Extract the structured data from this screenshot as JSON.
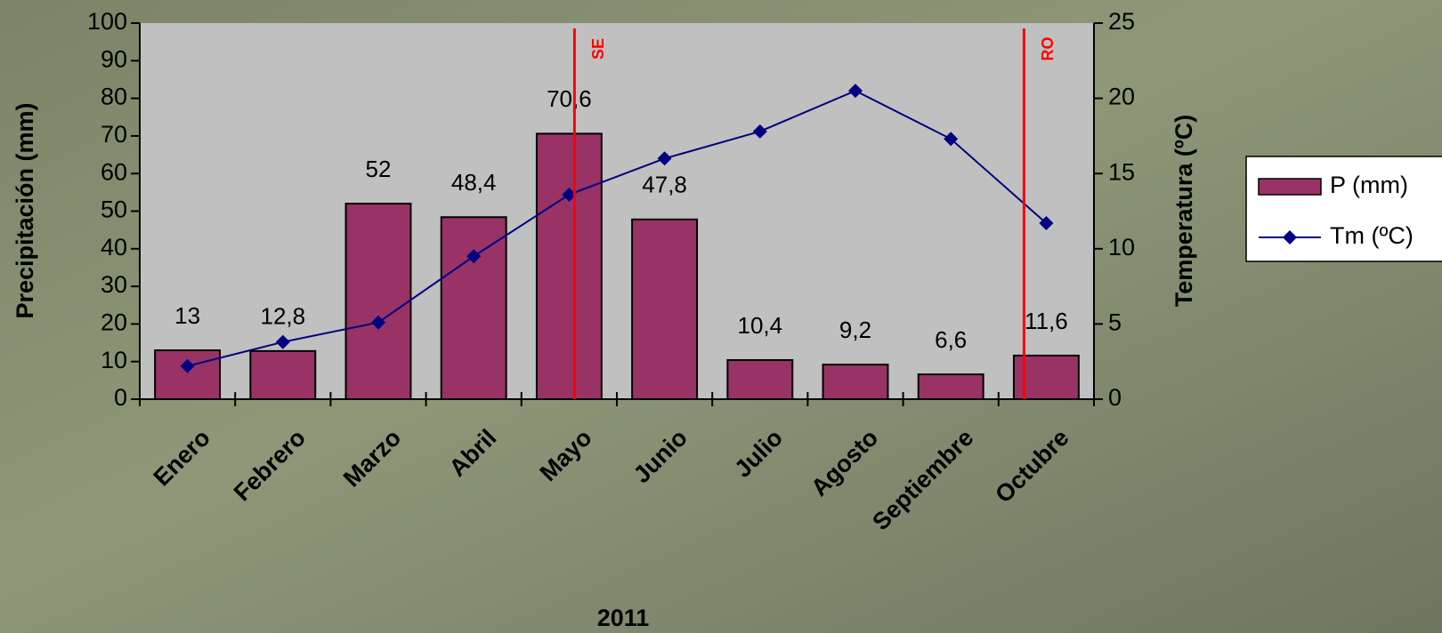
{
  "chart_data": {
    "type": "bar",
    "y_label": "Precipitación (mm)",
    "y2_label": "Temperatura (ºC)",
    "x_label": "2011",
    "categories": [
      "Enero",
      "Febrero",
      "Marzo",
      "Abril",
      "Mayo",
      "Junio",
      "Julio",
      "Agosto",
      "Septiembre",
      "Octubre"
    ],
    "series": [
      {
        "name": "P (mm)",
        "type": "bar",
        "color": "#993366",
        "values": [
          13,
          12.8,
          52,
          48.4,
          70.6,
          47.8,
          10.4,
          9.2,
          6.6,
          11.6
        ],
        "value_labels": [
          "13",
          "12,8",
          "52",
          "48,4",
          "70,6",
          "47,8",
          "10,4",
          "9,2",
          "6,6",
          "11,6"
        ]
      },
      {
        "name": "Tm (ºC)",
        "type": "line",
        "axis": "y2",
        "color": "#000080",
        "values": [
          2.2,
          3.8,
          5.1,
          9.5,
          13.6,
          16.0,
          17.8,
          20.5,
          17.3,
          11.7
        ]
      }
    ],
    "ylim": [
      0,
      100
    ],
    "yticks": [
      0,
      10,
      20,
      30,
      40,
      50,
      60,
      70,
      80,
      90,
      100
    ],
    "y2lim": [
      0,
      25
    ],
    "y2ticks": [
      0,
      5,
      10,
      15,
      20,
      25
    ],
    "annotations": [
      {
        "label": "SE",
        "color": "#ff0000"
      },
      {
        "label": "RO",
        "color": "#ff0000"
      }
    ],
    "legend": "right"
  }
}
